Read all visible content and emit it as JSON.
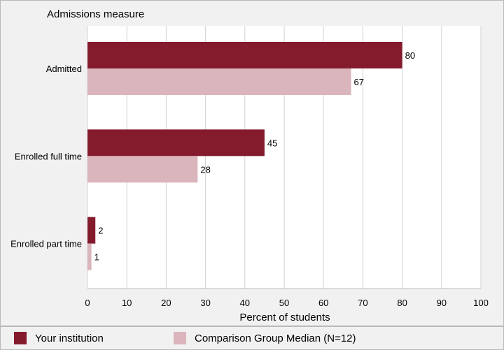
{
  "chart_data": {
    "type": "bar",
    "orientation": "horizontal",
    "ylabel": "Admissions measure",
    "xlabel": "Percent of students",
    "xlim": [
      0,
      100
    ],
    "xticks": [
      0,
      10,
      20,
      30,
      40,
      50,
      60,
      70,
      80,
      90,
      100
    ],
    "grid": true,
    "legend_position": "bottom",
    "categories": [
      "Admitted",
      "Enrolled full time",
      "Enrolled part time"
    ],
    "series": [
      {
        "name": "Your institution",
        "values": [
          80,
          45,
          2
        ],
        "color": "#841b2d"
      },
      {
        "name": "Comparison Group Median (N=12)",
        "values": [
          67,
          28,
          1
        ],
        "color": "#dbb5bc"
      }
    ]
  }
}
